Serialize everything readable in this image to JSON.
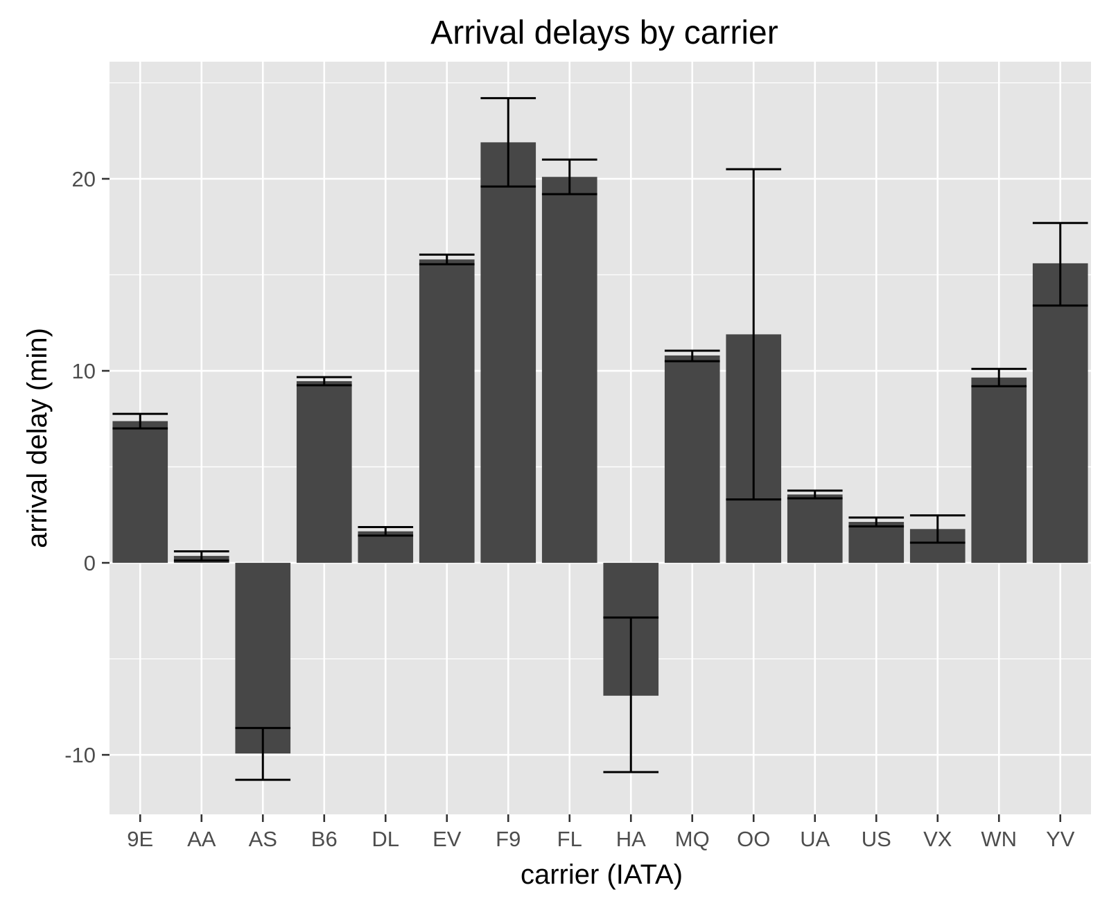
{
  "chart_data": {
    "type": "bar",
    "title": "Arrival delays by carrier",
    "xlabel": "carrier (IATA)",
    "ylabel": "arrival delay (min)",
    "categories": [
      "9E",
      "AA",
      "AS",
      "B6",
      "DL",
      "EV",
      "F9",
      "FL",
      "HA",
      "MQ",
      "OO",
      "UA",
      "US",
      "VX",
      "WN",
      "YV"
    ],
    "values": [
      7.38,
      0.36,
      -9.93,
      9.46,
      1.64,
      15.8,
      21.9,
      20.1,
      -6.92,
      10.8,
      11.9,
      3.56,
      2.13,
      1.76,
      9.65,
      15.6
    ],
    "error_low": [
      7.0,
      0.12,
      -11.3,
      9.25,
      1.42,
      15.55,
      19.6,
      19.2,
      -10.9,
      10.5,
      3.3,
      3.36,
      1.9,
      1.05,
      9.2,
      13.4
    ],
    "error_high": [
      7.76,
      0.6,
      -8.6,
      9.67,
      1.86,
      16.05,
      24.2,
      21.0,
      -2.85,
      11.05,
      20.5,
      3.76,
      2.36,
      2.47,
      10.1,
      17.7
    ],
    "ylim": [
      -13.1,
      26.1
    ],
    "yticks": [
      -10,
      0,
      10,
      20
    ],
    "grid": true,
    "legend": "none",
    "colors": {
      "bar": "#474747",
      "errorbar": "#000000",
      "panel": "#e5e5e5",
      "grid": "#ffffff",
      "tick_text": "#4d4d4d"
    }
  }
}
